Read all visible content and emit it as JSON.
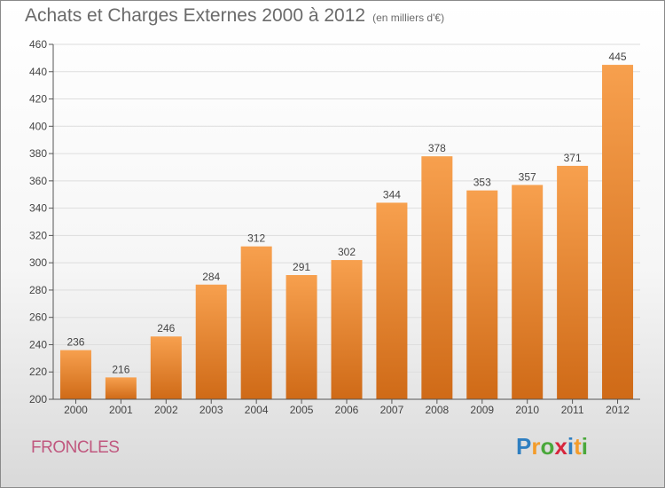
{
  "title": "Achats et Charges Externes 2000 à 2012",
  "subtitle": "(en milliers d'€)",
  "commune": "FRONCLES",
  "logo": {
    "text": "Proxiti",
    "letters": [
      "P",
      "r",
      "o",
      "x",
      "i",
      "t",
      "i"
    ],
    "colors": [
      "#2f7fc1",
      "#f39c2b",
      "#4aa83b",
      "#d7263d",
      "#2f7fc1",
      "#f39c2b",
      "#4aa83b"
    ]
  },
  "chart_data": {
    "type": "bar",
    "categories": [
      "2000",
      "2001",
      "2002",
      "2003",
      "2004",
      "2005",
      "2006",
      "2007",
      "2008",
      "2009",
      "2010",
      "2011",
      "2012"
    ],
    "values": [
      236,
      216,
      246,
      284,
      312,
      291,
      302,
      344,
      378,
      353,
      357,
      371,
      445
    ],
    "ylim": [
      200,
      460
    ],
    "yticks": [
      200,
      220,
      240,
      260,
      280,
      300,
      320,
      340,
      360,
      380,
      400,
      420,
      440,
      460
    ],
    "grid": true,
    "bar_color_top": "#f7a04e",
    "bar_color_bottom": "#cf6a17"
  }
}
